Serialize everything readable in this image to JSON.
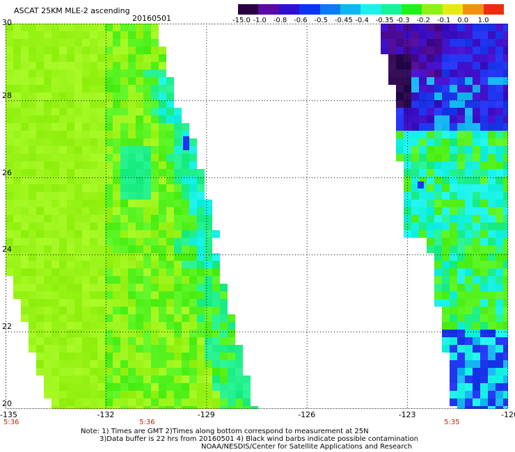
{
  "header": {
    "title": "ASCAT 25KM MLE-2 ascending",
    "date": "20160501"
  },
  "colorbar": {
    "labels": [
      "-15.0",
      "-1.0",
      "-0.8",
      "-0.6",
      "-0.5",
      "-0.45",
      "-0.4",
      "-0.35",
      "-0.3",
      "-0.2",
      "-0.1",
      "0.0",
      "1.0"
    ],
    "colors": [
      "#2a0044",
      "#5a0aa8",
      "#2f10d0",
      "#0b34f2",
      "#0a7bf2",
      "#0fb8f0",
      "#1ef0ec",
      "#17f29c",
      "#1ff21a",
      "#8ef216",
      "#e4ea14",
      "#f49010",
      "#ee2a10"
    ]
  },
  "map": {
    "x_ticks": [
      "-135",
      "-132",
      "-129",
      "-126",
      "-123",
      "-120"
    ],
    "y_ticks": [
      "30",
      "28",
      "26",
      "24",
      "22",
      "20"
    ],
    "lon_range": [
      -135,
      -120
    ],
    "lat_range": [
      20,
      30
    ],
    "swath_colors": {
      "yellow_green": "#9bf419",
      "green": "#55f21e",
      "aqua_green": "#21f08a",
      "cyan": "#19f2e6",
      "light_blue": "#16b6f4",
      "blue": "#1f35ee",
      "indigo": "#4010c8",
      "purple": "#4a0a90",
      "dark_purple": "#2c0a50"
    },
    "time_labels": [
      {
        "text": "5:36",
        "lon": -135
      },
      {
        "text": "5:36",
        "lon": -130.8
      },
      {
        "text": "5:35",
        "lon": -121.7
      }
    ]
  },
  "notes": [
    "Note: 1) Times are GMT 2)Times along bottom correspond to measurement at 25N",
    "3)Data buffer is 22 hrs from 20160501 4) Black wind barbs indicate possible contamination",
    "NOAA/NESDIS/Center for Satellite Applications and Research"
  ]
}
